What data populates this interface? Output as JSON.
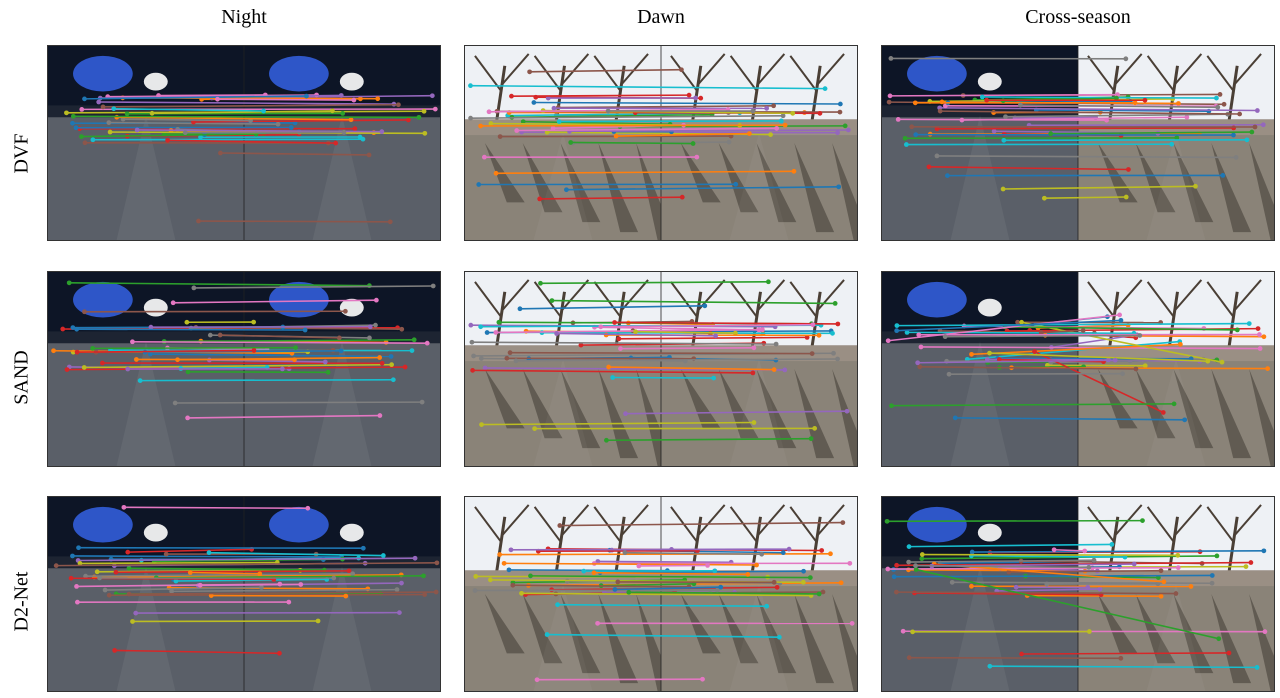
{
  "columns": [
    "Night",
    "Dawn",
    "Cross-season"
  ],
  "rows": [
    "DVF",
    "SAND",
    "D2-Net"
  ],
  "scene_palette": {
    "night_sky": "#0d1526",
    "night_road": "#5a5f68",
    "dawn_sky": "#eef1f5",
    "dawn_road": "#8a8378",
    "match_colors": [
      "#1f77b4",
      "#ff7f0e",
      "#2ca02c",
      "#d62728",
      "#9467bd",
      "#8c564b",
      "#e377c2",
      "#7f7f7f",
      "#bcbd22",
      "#17becf"
    ]
  }
}
